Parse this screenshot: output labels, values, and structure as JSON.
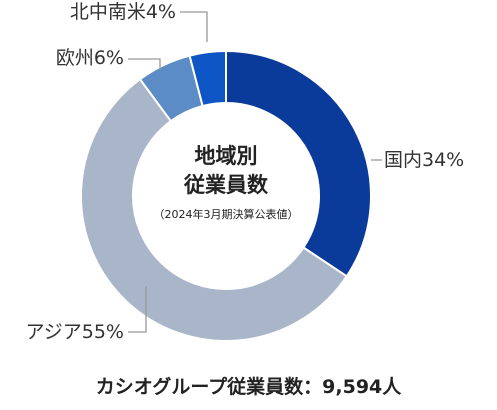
{
  "chart_data": {
    "type": "pie",
    "title": "地域別",
    "subtitle": "従業員数",
    "note": "（2024年3月期決算公表値）",
    "slices": [
      {
        "label": "国内34%",
        "value": 34,
        "color": "#0a3a9a"
      },
      {
        "label": "アジア55%",
        "value": 55,
        "color": "#a9b6c9"
      },
      {
        "label": "欧州6%",
        "value": 6,
        "color": "#5b8cc6"
      },
      {
        "label": "北中南米4%",
        "value": 4,
        "color": "#0e56c6"
      }
    ]
  },
  "footer": "カシオグループ従業員数：9,594人"
}
